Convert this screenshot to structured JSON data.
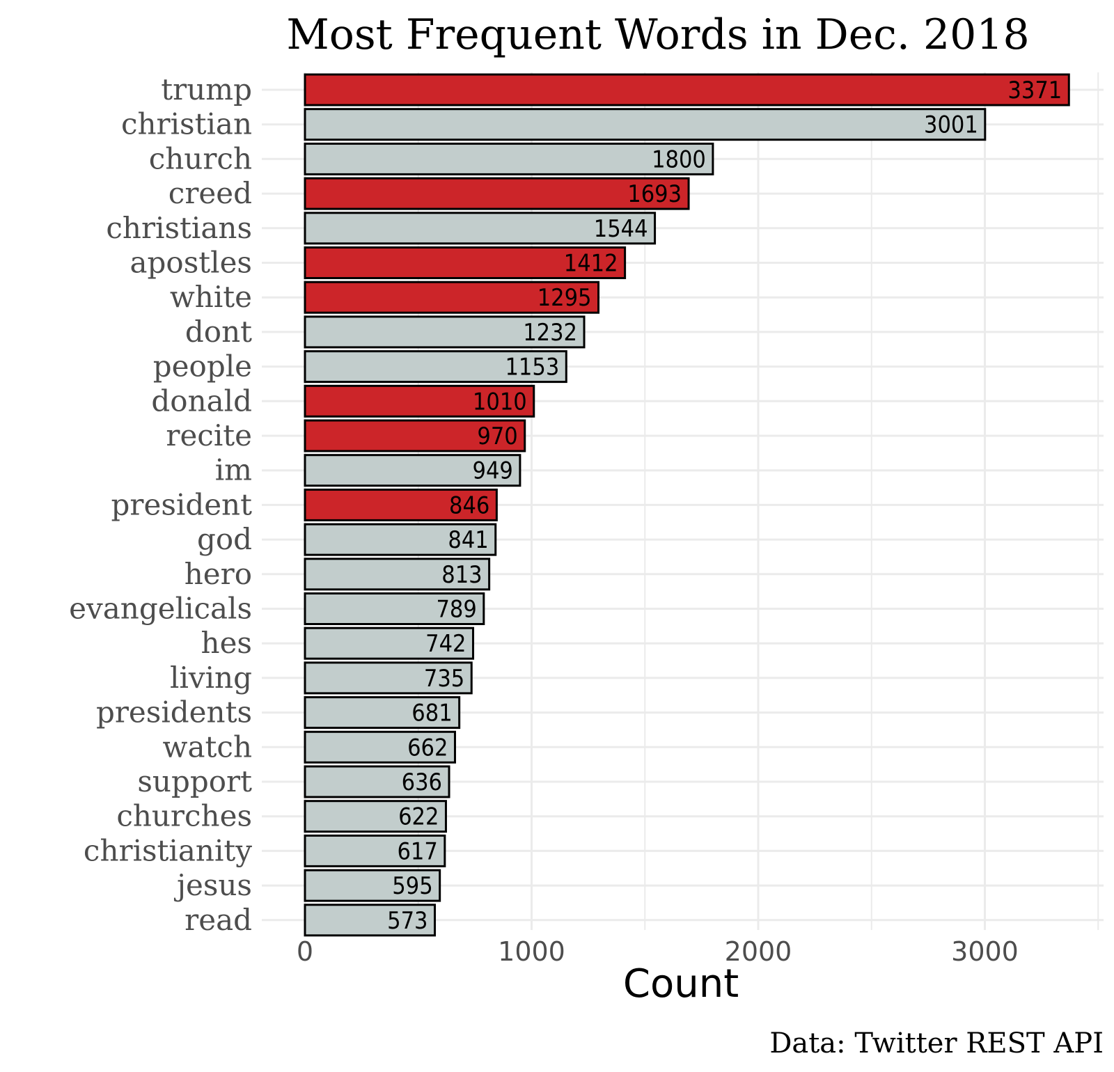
{
  "chart_data": {
    "type": "bar",
    "orientation": "horizontal",
    "title": "Most Frequent Words in Dec. 2018",
    "xlabel": "Count",
    "ylabel": "",
    "caption": "Data: Twitter REST API",
    "xlim": [
      0,
      3550
    ],
    "xticks": [
      0,
      1000,
      2000,
      3000
    ],
    "grid": true,
    "colors": {
      "highlight": "#cc2529",
      "default": "#c2cdcc",
      "outline": "#000000",
      "grid": "#ebebeb"
    },
    "categories": [
      "trump",
      "christian",
      "church",
      "creed",
      "christians",
      "apostles",
      "white",
      "dont",
      "people",
      "donald",
      "recite",
      "im",
      "president",
      "god",
      "hero",
      "evangelicals",
      "hes",
      "living",
      "presidents",
      "watch",
      "support",
      "churches",
      "christianity",
      "jesus",
      "read"
    ],
    "values": [
      3371,
      3001,
      1800,
      1693,
      1544,
      1412,
      1295,
      1232,
      1153,
      1010,
      970,
      949,
      846,
      841,
      813,
      789,
      742,
      735,
      681,
      662,
      636,
      622,
      617,
      595,
      573
    ],
    "highlighted": [
      true,
      false,
      false,
      true,
      false,
      true,
      true,
      false,
      false,
      true,
      true,
      false,
      true,
      false,
      false,
      false,
      false,
      false,
      false,
      false,
      false,
      false,
      false,
      false,
      false
    ]
  }
}
